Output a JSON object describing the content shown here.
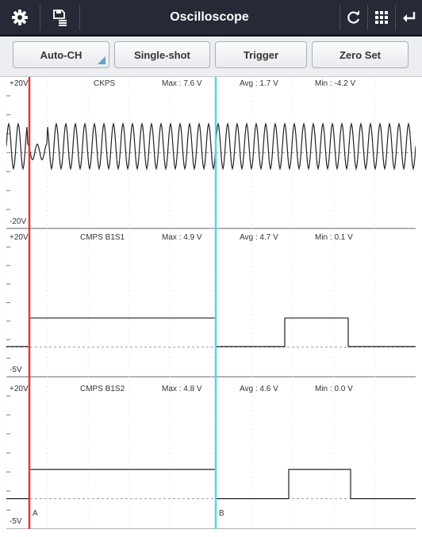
{
  "header": {
    "title": "Oscilloscope",
    "left_icons": [
      "gear-icon",
      "save-list-icon"
    ],
    "right_icons": [
      "refresh-icon",
      "grid-icon",
      "back-icon"
    ]
  },
  "toolbar": {
    "auto_ch_label": "Auto-CH",
    "single_shot_label": "Single-shot",
    "trigger_label": "Trigger",
    "zero_set_label": "Zero Set"
  },
  "cursors": {
    "a_label": "A",
    "b_label": "B",
    "a_color": "#e53935",
    "b_color": "#4dd9e8"
  },
  "panels": [
    {
      "name": "CKPS",
      "top_label": "+20V",
      "bottom_label": "-20V",
      "max_text": "Max : 7.6 V",
      "avg_text": "Avg : 1.7 V",
      "min_text": "Min : -4.2 V",
      "signal": "sine",
      "low": -4.2,
      "high": 7.6
    },
    {
      "name": "CMPS B1S1",
      "top_label": "+20V",
      "bottom_label": "-5V",
      "max_text": "Max : 4.9 V",
      "avg_text": "Avg : 4.7 V",
      "min_text": "Min : 0.1 V",
      "signal": "pulse",
      "low": 0.1,
      "high": 4.9
    },
    {
      "name": "CMPS B1S2",
      "top_label": "+20V",
      "bottom_label": "-5V",
      "max_text": "Max : 4.8 V",
      "avg_text": "Avg : 4.6 V",
      "min_text": "Min : 0.0 V",
      "signal": "pulse",
      "low": 0.0,
      "high": 4.8
    }
  ],
  "colors": {
    "toolbar_bg": "#262a36",
    "button_accent": "#5aa7c6",
    "grid": "#d9d9d9",
    "trace": "#222222"
  }
}
